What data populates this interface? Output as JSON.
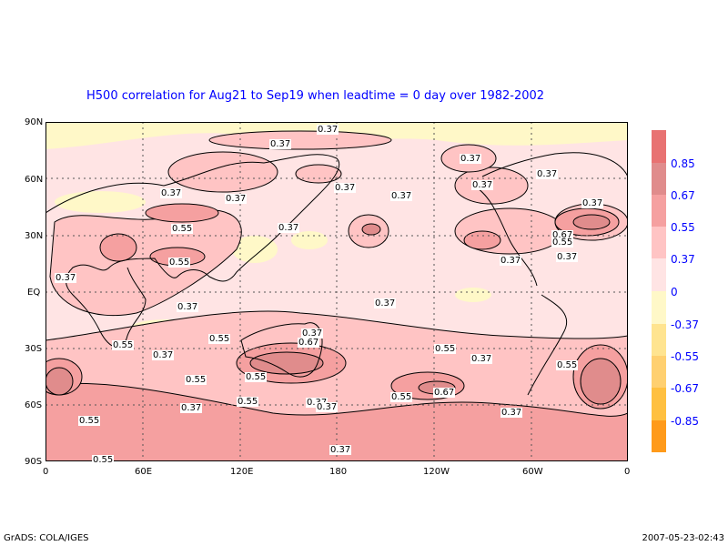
{
  "title": "H500 correlation for  Aug21 to Sep19  when leadtime =  0 day over 1982-2002",
  "lat_labels": [
    "90N",
    "60N",
    "30N",
    "EQ",
    "30S",
    "60S",
    "90S"
  ],
  "lon_labels": [
    "0",
    "60E",
    "120E",
    "180",
    "120W",
    "60W",
    "0"
  ],
  "colorbar": {
    "labels": [
      "0.85",
      "0.67",
      "0.55",
      "0.37",
      "0",
      "-0.37",
      "-0.55",
      "-0.67",
      "-0.85"
    ],
    "colors": [
      "#e87272",
      "#e08c8c",
      "#f5a0a0",
      "#ffc4c4",
      "#ffe4e4",
      "#fff8c8",
      "#ffe490",
      "#ffd070",
      "#ffc040",
      "#ff9a1a"
    ]
  },
  "contour_labels": [
    "0.37",
    "0.37",
    "0.37",
    "0.37",
    "0.37",
    "0.37",
    "0.37",
    "0.37",
    "0.37",
    "0.37",
    "0.55",
    "0.37",
    "0.67",
    "0.55",
    "0.55",
    "0.37",
    "0.37",
    "0.37",
    "0.37",
    "0.37",
    "0.37",
    "0.67",
    "0.55",
    "0.55",
    "0.37",
    "0.55",
    "0.37",
    "0.55",
    "0.55",
    "0.55",
    "0.37",
    "0.55",
    "0.37",
    "0.37",
    "0.55",
    "0.67",
    "0.55",
    "0.37",
    "0.37",
    "0.55"
  ],
  "footer": {
    "left": "GrADS: COLA/IGES",
    "right": "2007-05-23-02:43"
  }
}
